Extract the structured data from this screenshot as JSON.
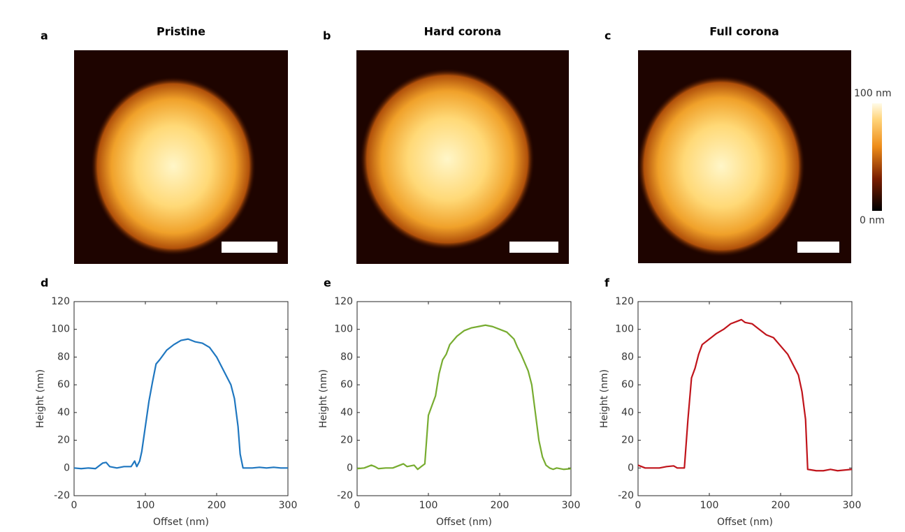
{
  "images": [
    {
      "letter": "a",
      "title": "Pristine"
    },
    {
      "letter": "b",
      "title": "Hard corona"
    },
    {
      "letter": "c",
      "title": "Full corona"
    }
  ],
  "colorbar": {
    "max_label": "100 nm",
    "min_label": "0 nm"
  },
  "chart_data": [
    {
      "type": "line",
      "panel_label": "d",
      "xlabel": "Offset (nm)",
      "ylabel": "Height (nm)",
      "color": "#1f77c0",
      "xlim": [
        0,
        300
      ],
      "ylim": [
        -20,
        120
      ],
      "xticks": [
        0,
        100,
        200,
        300
      ],
      "yticks": [
        -20,
        0,
        20,
        40,
        60,
        80,
        100,
        120
      ],
      "x": [
        0,
        10,
        20,
        30,
        40,
        45,
        50,
        60,
        70,
        80,
        85,
        88,
        92,
        95,
        100,
        105,
        110,
        115,
        120,
        130,
        140,
        150,
        160,
        170,
        180,
        190,
        200,
        210,
        220,
        225,
        230,
        233,
        237,
        250,
        260,
        270,
        280,
        290,
        300
      ],
      "values": [
        0,
        -0.5,
        0,
        -0.5,
        3.5,
        4,
        1,
        0,
        1,
        1,
        5,
        1,
        5,
        12,
        30,
        48,
        62,
        75,
        78,
        85,
        89,
        92,
        93,
        91,
        90,
        87,
        80,
        70,
        60,
        50,
        30,
        10,
        0,
        0,
        0.5,
        0,
        0.5,
        0,
        0
      ]
    },
    {
      "type": "line",
      "panel_label": "e",
      "xlabel": "Offset (nm)",
      "ylabel": "Height (nm)",
      "color": "#77ac30",
      "xlim": [
        0,
        300
      ],
      "ylim": [
        -20,
        120
      ],
      "xticks": [
        0,
        100,
        200,
        300
      ],
      "yticks": [
        -20,
        0,
        20,
        40,
        60,
        80,
        100,
        120
      ],
      "x": [
        0,
        10,
        20,
        25,
        30,
        40,
        50,
        60,
        65,
        70,
        80,
        85,
        90,
        95,
        100,
        105,
        110,
        115,
        120,
        125,
        130,
        140,
        150,
        160,
        170,
        180,
        190,
        200,
        210,
        220,
        225,
        230,
        240,
        245,
        250,
        255,
        260,
        265,
        270,
        275,
        280,
        290,
        300
      ],
      "values": [
        -0.5,
        0,
        2,
        1,
        -0.5,
        0,
        0,
        2,
        3,
        1,
        2,
        -1,
        1,
        3,
        38,
        45,
        52,
        68,
        78,
        82,
        89,
        95,
        99,
        101,
        102,
        103,
        102,
        100,
        98,
        93,
        87,
        82,
        70,
        60,
        40,
        20,
        8,
        2,
        0,
        -1,
        0,
        -1,
        -0.5
      ]
    },
    {
      "type": "line",
      "panel_label": "f",
      "xlabel": "Offset (nm)",
      "ylabel": "Height (nm)",
      "color": "#c0141b",
      "xlim": [
        0,
        300
      ],
      "ylim": [
        -20,
        120
      ],
      "xticks": [
        0,
        100,
        200,
        300
      ],
      "yticks": [
        -20,
        0,
        20,
        40,
        60,
        80,
        100,
        120
      ],
      "x": [
        0,
        10,
        20,
        30,
        40,
        50,
        55,
        60,
        65,
        70,
        75,
        80,
        85,
        90,
        100,
        110,
        120,
        130,
        140,
        145,
        150,
        160,
        170,
        180,
        190,
        200,
        210,
        220,
        225,
        230,
        235,
        238,
        250,
        260,
        270,
        280,
        290,
        300
      ],
      "values": [
        2,
        0,
        0,
        0,
        1,
        1.5,
        0,
        0,
        0,
        35,
        65,
        72,
        82,
        89,
        93,
        97,
        100,
        104,
        106,
        107,
        105,
        104,
        100,
        96,
        94,
        88,
        82,
        72,
        67,
        55,
        35,
        -1,
        -2,
        -2,
        -1,
        -2,
        -1.5,
        -1
      ]
    }
  ]
}
